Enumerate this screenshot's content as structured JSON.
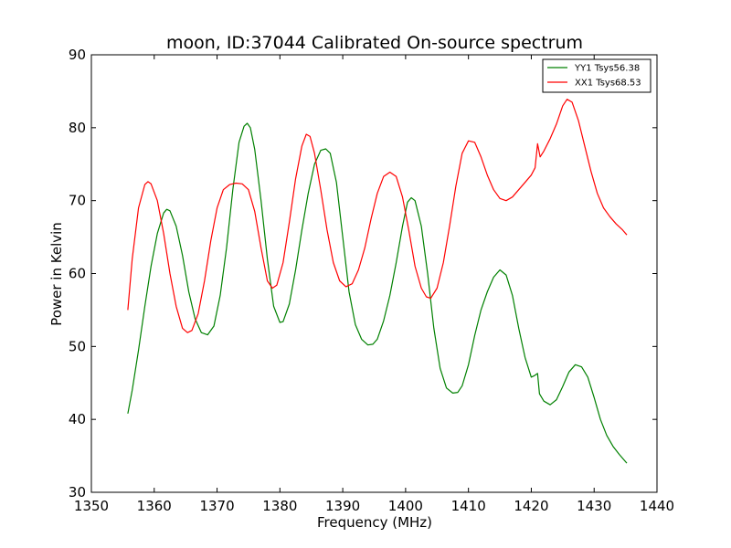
{
  "chart_data": {
    "type": "line",
    "title": "moon, ID:37044 Calibrated On-source spectrum",
    "xlabel": "Frequency (MHz)",
    "ylabel": "Power in Kelvin",
    "xlim": [
      1350,
      1440
    ],
    "ylim": [
      30,
      90
    ],
    "xticks": [
      1350,
      1360,
      1370,
      1380,
      1390,
      1400,
      1410,
      1420,
      1430,
      1440
    ],
    "yticks": [
      30,
      40,
      50,
      60,
      70,
      80,
      90
    ],
    "grid": false,
    "legend_position": "top-right",
    "series": [
      {
        "name": "YY1 Tsys56.38",
        "color": "#008000",
        "x": [
          1355.8,
          1356.5,
          1357.5,
          1358.5,
          1359.5,
          1360.5,
          1361.5,
          1362.0,
          1362.5,
          1363.5,
          1364.5,
          1365.5,
          1366.5,
          1367.5,
          1368.5,
          1369.5,
          1370.5,
          1371.5,
          1372.5,
          1373.5,
          1374.3,
          1374.8,
          1375.3,
          1376.0,
          1377.0,
          1378.0,
          1379.0,
          1380.0,
          1380.5,
          1381.5,
          1382.5,
          1383.5,
          1384.5,
          1385.5,
          1386.5,
          1387.3,
          1388.0,
          1389.0,
          1390.0,
          1391.0,
          1392.0,
          1393.0,
          1394.0,
          1394.8,
          1395.5,
          1396.5,
          1397.5,
          1398.5,
          1399.5,
          1400.3,
          1400.9,
          1401.5,
          1402.5,
          1403.5,
          1404.5,
          1405.5,
          1406.5,
          1407.5,
          1408.3,
          1409.0,
          1410.0,
          1411.0,
          1412.0,
          1413.0,
          1414.0,
          1415.0,
          1416.0,
          1417.0,
          1418.0,
          1419.0,
          1420.0,
          1420.5,
          1421.0,
          1421.3,
          1422.0,
          1423.0,
          1424.0,
          1425.0,
          1426.0,
          1427.0,
          1428.0,
          1429.0,
          1430.0,
          1431.0,
          1432.0,
          1433.0,
          1434.0,
          1435.2
        ],
        "values": [
          40.8,
          44.0,
          49.5,
          55.5,
          61.0,
          65.5,
          68.3,
          68.8,
          68.6,
          66.5,
          62.5,
          57.5,
          53.8,
          51.9,
          51.6,
          52.8,
          57.0,
          63.5,
          71.5,
          78.0,
          80.2,
          80.6,
          80.0,
          77.0,
          70.0,
          62.0,
          55.5,
          53.3,
          53.4,
          55.8,
          60.5,
          66.0,
          71.0,
          75.0,
          76.9,
          77.1,
          76.5,
          72.5,
          65.0,
          57.5,
          53.0,
          51.0,
          50.2,
          50.3,
          51.0,
          53.5,
          57.0,
          61.5,
          66.5,
          69.8,
          70.4,
          70.0,
          66.5,
          60.0,
          52.5,
          47.0,
          44.3,
          43.6,
          43.7,
          44.6,
          47.5,
          51.5,
          55.0,
          57.5,
          59.5,
          60.5,
          59.8,
          57.0,
          52.5,
          48.5,
          45.8,
          46.0,
          46.3,
          43.5,
          42.5,
          42.0,
          42.7,
          44.5,
          46.5,
          47.5,
          47.2,
          45.8,
          43.0,
          40.0,
          37.8,
          36.3,
          35.2,
          34.0
        ]
      },
      {
        "name": "XX1 Tsys68.53",
        "color": "#ff0000",
        "x": [
          1355.8,
          1356.5,
          1357.5,
          1358.5,
          1359.0,
          1359.5,
          1360.5,
          1361.5,
          1362.5,
          1363.5,
          1364.5,
          1365.3,
          1366.0,
          1367.0,
          1368.0,
          1369.0,
          1370.0,
          1371.0,
          1372.0,
          1373.0,
          1374.0,
          1375.0,
          1376.0,
          1377.0,
          1378.0,
          1378.8,
          1379.5,
          1380.5,
          1381.5,
          1382.5,
          1383.5,
          1384.2,
          1384.8,
          1385.5,
          1386.5,
          1387.5,
          1388.5,
          1389.5,
          1390.5,
          1391.5,
          1392.5,
          1393.5,
          1394.5,
          1395.5,
          1396.5,
          1397.5,
          1398.5,
          1399.5,
          1400.5,
          1401.5,
          1402.5,
          1403.3,
          1404.0,
          1405.0,
          1406.0,
          1407.0,
          1408.0,
          1409.0,
          1410.0,
          1411.0,
          1412.0,
          1413.0,
          1414.0,
          1415.0,
          1416.0,
          1417.0,
          1418.0,
          1419.0,
          1420.0,
          1420.6,
          1421.0,
          1421.4,
          1422.0,
          1423.0,
          1424.0,
          1425.0,
          1425.7,
          1426.5,
          1427.5,
          1428.5,
          1429.5,
          1430.5,
          1431.5,
          1432.5,
          1433.5,
          1434.5,
          1435.2
        ],
        "values": [
          55.0,
          62.0,
          69.0,
          72.2,
          72.6,
          72.3,
          70.0,
          65.5,
          60.0,
          55.5,
          52.5,
          51.9,
          52.2,
          54.5,
          59.0,
          64.5,
          69.0,
          71.5,
          72.2,
          72.4,
          72.3,
          71.5,
          68.5,
          63.5,
          59.0,
          58.0,
          58.4,
          61.5,
          67.0,
          73.0,
          77.5,
          79.1,
          78.8,
          76.5,
          71.5,
          66.0,
          61.5,
          59.0,
          58.2,
          58.6,
          60.5,
          63.5,
          67.5,
          71.0,
          73.3,
          73.9,
          73.3,
          70.5,
          66.0,
          61.0,
          58.0,
          56.8,
          56.6,
          58.0,
          61.5,
          66.5,
          72.0,
          76.5,
          78.2,
          78.0,
          76.0,
          73.5,
          71.5,
          70.3,
          70.0,
          70.5,
          71.5,
          72.5,
          73.5,
          74.5,
          77.8,
          76.0,
          76.8,
          78.5,
          80.5,
          83.0,
          83.9,
          83.5,
          81.0,
          77.5,
          74.0,
          71.0,
          69.0,
          67.8,
          66.8,
          66.0,
          65.3
        ]
      }
    ]
  }
}
